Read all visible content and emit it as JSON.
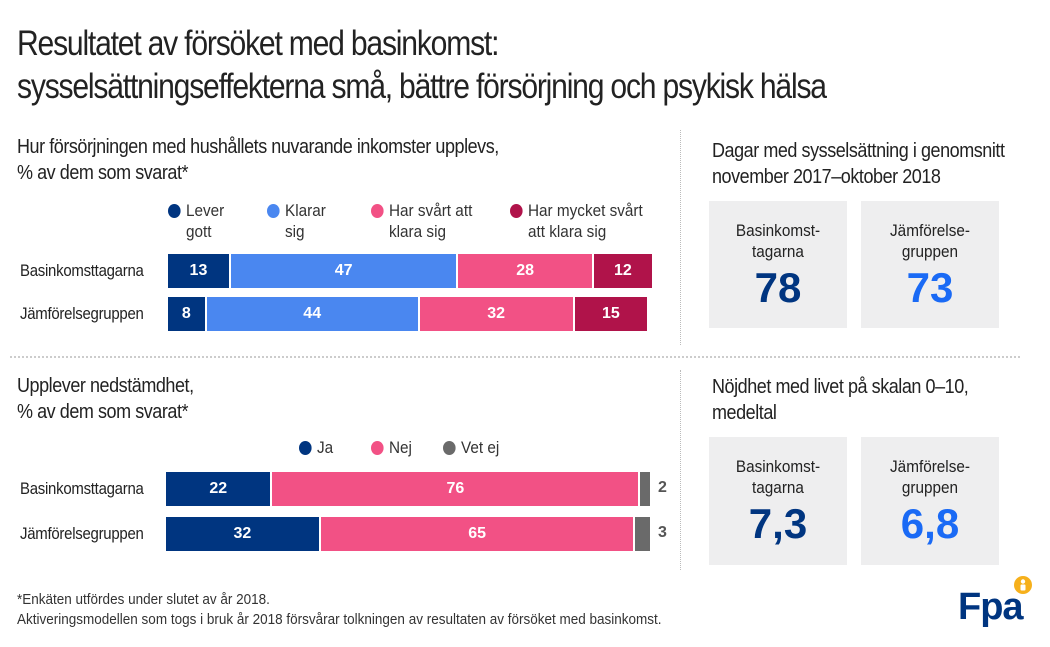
{
  "title": {
    "line1": "Resultatet av försöket med basinkomst:",
    "line2": "sysselsättningseffekterna små, bättre försörjning och psykisk hälsa"
  },
  "colors": {
    "dark_blue": "#003580",
    "light_blue": "#4a87f0",
    "pink": "#f25185",
    "crimson": "#b0134a",
    "gray": "#6a6a6a",
    "bright_blue": "#1a6af5",
    "kpi_bg": "#eeeeef"
  },
  "chart_data": [
    {
      "type": "bar",
      "orientation": "horizontal-stacked",
      "title_line1": "Hur försörjningen med hushållets nuvarande inkomster upplevs,",
      "title_line2": "% av dem som svarat*",
      "categories": [
        "Basinkomsttagarna",
        "Jämförelsegruppen"
      ],
      "series": [
        {
          "name_line1": "Lever",
          "name_line2": "gott",
          "name": "Lever gott",
          "color": "#003580",
          "values": [
            13,
            8
          ]
        },
        {
          "name_line1": "Klarar",
          "name_line2": "sig",
          "name": "Klarar sig",
          "color": "#4a87f0",
          "values": [
            47,
            44
          ]
        },
        {
          "name_line1": "Har svårt att",
          "name_line2": "klara sig",
          "name": "Har svårt att klara sig",
          "color": "#f25185",
          "values": [
            28,
            32
          ]
        },
        {
          "name_line1": "Har mycket svårt",
          "name_line2": "att klara sig",
          "name": "Har mycket svårt att klara sig",
          "color": "#b0134a",
          "values": [
            12,
            15
          ]
        }
      ],
      "legend": "top",
      "unit": "%"
    },
    {
      "type": "bar",
      "orientation": "horizontal-stacked",
      "title_line1": "Upplever nedstämdhet,",
      "title_line2": "% av dem som svarat*",
      "categories": [
        "Basinkomsttagarna",
        "Jämförelsegruppen"
      ],
      "series": [
        {
          "name": "Ja",
          "color": "#003580",
          "values": [
            22,
            32
          ]
        },
        {
          "name": "Nej",
          "color": "#f25185",
          "values": [
            76,
            65
          ]
        },
        {
          "name": "Vet ej",
          "color": "#6a6a6a",
          "values": [
            2,
            3
          ]
        }
      ],
      "legend": "top",
      "unit": "%"
    }
  ],
  "kpi_employment": {
    "title_line1": "Dagar med sysselsättning i genomsnitt",
    "title_line2": "november 2017–oktober 2018",
    "items": [
      {
        "label_line1": "Basinkomst-",
        "label_line2": "tagarna",
        "value": "78",
        "color": "#003580"
      },
      {
        "label_line1": "Jämförelse-",
        "label_line2": "gruppen",
        "value": "73",
        "color": "#1a6af5"
      }
    ]
  },
  "kpi_satisfaction": {
    "title_line1": "Nöjdhet med livet på skalan 0–10,",
    "title_line2": "medeltal",
    "items": [
      {
        "label_line1": "Basinkomst-",
        "label_line2": "tagarna",
        "value": "7,3",
        "color": "#003580"
      },
      {
        "label_line1": "Jämförelse-",
        "label_line2": "gruppen",
        "value": "6,8",
        "color": "#1a6af5"
      }
    ]
  },
  "footnotes": {
    "line1": "*Enkäten utfördes under slutet av år 2018.",
    "line2": "Aktiveringsmodellen som togs i bruk år 2018 försvårar tolkningen av resultaten av försöket med basinkomst."
  },
  "logo": {
    "text": "Fpa",
    "icon": "kela-person-badge-icon"
  }
}
